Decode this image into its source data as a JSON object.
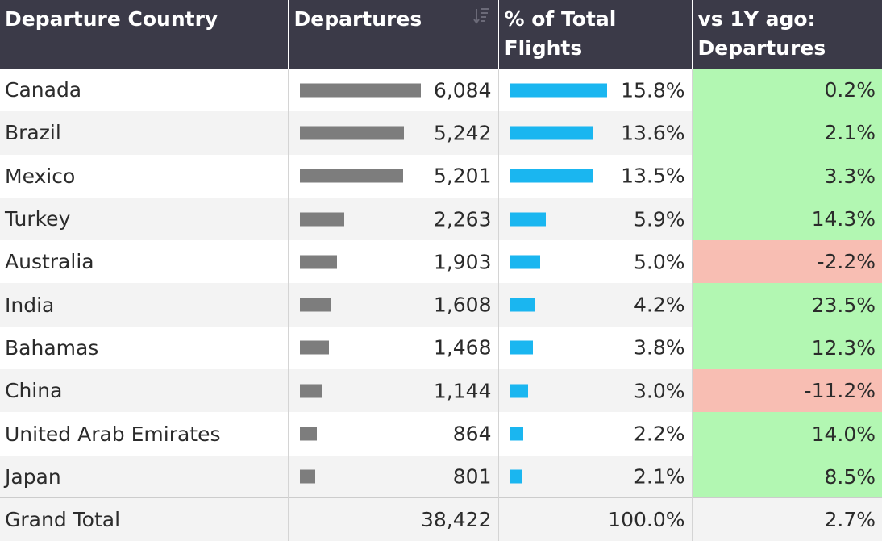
{
  "header": {
    "col_country": "Departure Country",
    "col_departures": "Departures",
    "col_pct": "% of Total Flights",
    "col_yoy": "vs 1Y ago: Departures",
    "sort_icon": "sort-descending-icon"
  },
  "colors": {
    "departures_bar": "#7d7d7d",
    "pct_bar": "#1ab6f0",
    "positive": "#b2f7b2",
    "negative": "#f8beb3",
    "header_bg": "#3b3a48"
  },
  "chart_data": {
    "type": "table",
    "columns": [
      "Departure Country",
      "Departures",
      "% of Total Flights",
      "vs 1Y ago: Departures"
    ],
    "rows": [
      {
        "country": "Canada",
        "departures": 6084,
        "departures_label": "6,084",
        "pct": 15.8,
        "pct_label": "15.8%",
        "yoy": 0.2,
        "yoy_label": "0.2%"
      },
      {
        "country": "Brazil",
        "departures": 5242,
        "departures_label": "5,242",
        "pct": 13.6,
        "pct_label": "13.6%",
        "yoy": 2.1,
        "yoy_label": "2.1%"
      },
      {
        "country": "Mexico",
        "departures": 5201,
        "departures_label": "5,201",
        "pct": 13.5,
        "pct_label": "13.5%",
        "yoy": 3.3,
        "yoy_label": "3.3%"
      },
      {
        "country": "Turkey",
        "departures": 2263,
        "departures_label": "2,263",
        "pct": 5.9,
        "pct_label": "5.9%",
        "yoy": 14.3,
        "yoy_label": "14.3%"
      },
      {
        "country": "Australia",
        "departures": 1903,
        "departures_label": "1,903",
        "pct": 5.0,
        "pct_label": "5.0%",
        "yoy": -2.2,
        "yoy_label": "-2.2%"
      },
      {
        "country": "India",
        "departures": 1608,
        "departures_label": "1,608",
        "pct": 4.2,
        "pct_label": "4.2%",
        "yoy": 23.5,
        "yoy_label": "23.5%"
      },
      {
        "country": "Bahamas",
        "departures": 1468,
        "departures_label": "1,468",
        "pct": 3.8,
        "pct_label": "3.8%",
        "yoy": 12.3,
        "yoy_label": "12.3%"
      },
      {
        "country": "China",
        "departures": 1144,
        "departures_label": "1,144",
        "pct": 3.0,
        "pct_label": "3.0%",
        "yoy": -11.2,
        "yoy_label": "-11.2%"
      },
      {
        "country": "United Arab Emirates",
        "departures": 864,
        "departures_label": "864",
        "pct": 2.2,
        "pct_label": "2.2%",
        "yoy": 14.0,
        "yoy_label": "14.0%"
      },
      {
        "country": "Japan",
        "departures": 801,
        "departures_label": "801",
        "pct": 2.1,
        "pct_label": "2.1%",
        "yoy": 8.5,
        "yoy_label": "8.5%"
      }
    ],
    "total": {
      "label": "Grand Total",
      "departures": 38422,
      "departures_label": "38,422",
      "pct": 100.0,
      "pct_label": "100.0%",
      "yoy": 2.7,
      "yoy_label": "2.7%"
    }
  }
}
